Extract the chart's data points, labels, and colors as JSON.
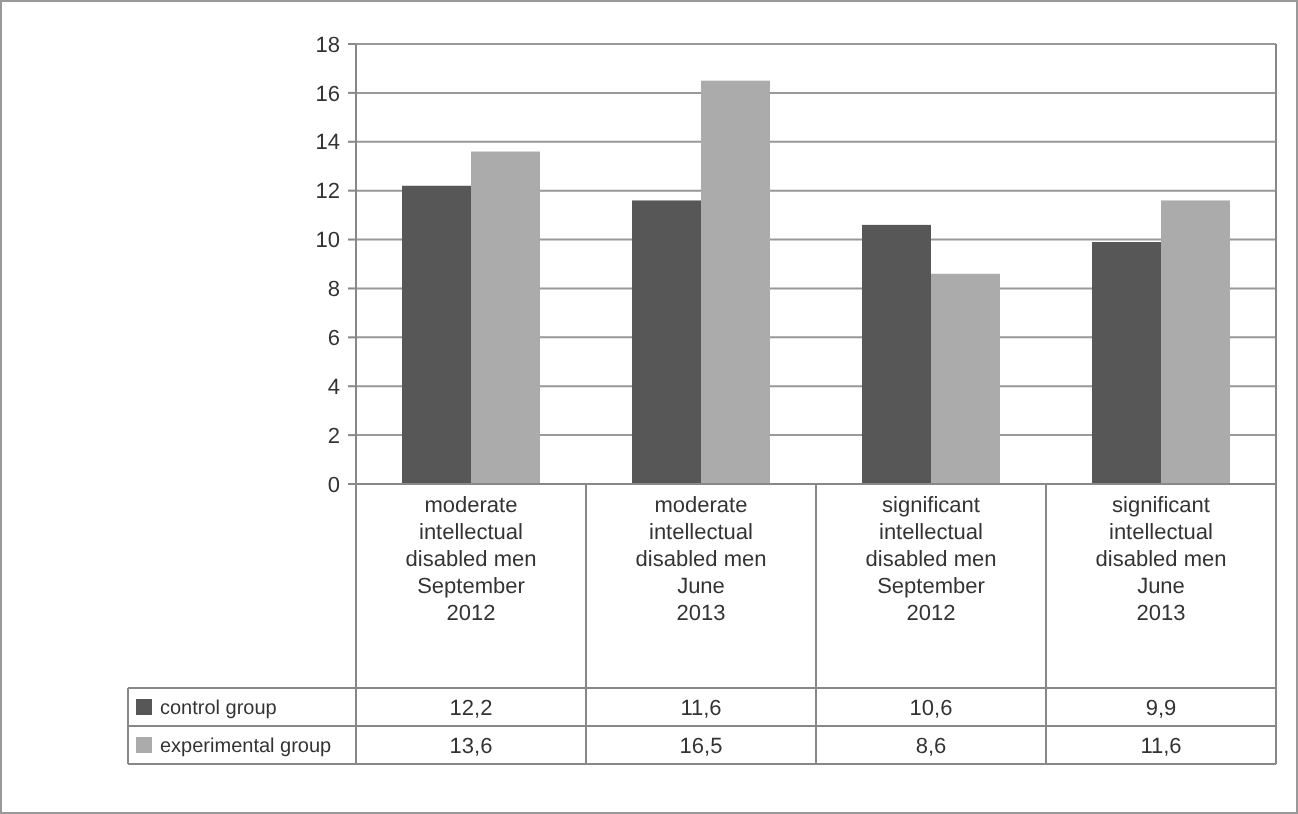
{
  "chart_data": {
    "type": "bar",
    "categories": [
      "moderate\nintellectual\ndisabled men\nSeptember\n2012",
      "moderate\nintellectual\ndisabled men\nJune\n2013",
      "significant\nintellectual\ndisabled men\nSeptember\n2012",
      "significant\nintellectual\ndisabled men\nJune\n2013"
    ],
    "series": [
      {
        "name": "control group",
        "color": "#575757",
        "values": [
          12.2,
          11.6,
          10.6,
          9.9
        ],
        "value_labels": [
          "12,2",
          "11,6",
          "10,6",
          "9,9"
        ]
      },
      {
        "name": "experimental group",
        "color": "#ababab",
        "values": [
          13.6,
          16.5,
          8.6,
          11.6
        ],
        "value_labels": [
          "13,6",
          "16,5",
          "8,6",
          "11,6"
        ]
      }
    ],
    "ylim": [
      0,
      18
    ],
    "yticks": [
      0,
      2,
      4,
      6,
      8,
      10,
      12,
      14,
      16,
      18
    ],
    "grid": "y",
    "legend": "bottom"
  }
}
